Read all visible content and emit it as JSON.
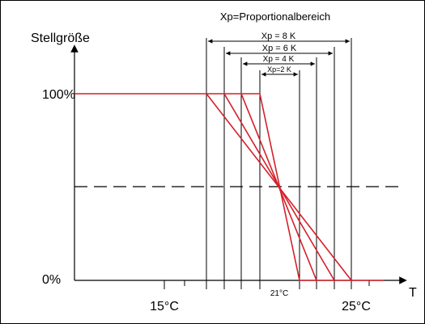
{
  "diagram": {
    "title": "Xp=Proportionalbereich",
    "y_axis_label": "Stellgröße",
    "x_axis_label": "T",
    "y_ticks": {
      "top": "100%",
      "bottom": "0%"
    },
    "x_ticks": {
      "left": "15°C",
      "center": "21°C",
      "right": "25°C"
    },
    "bands": [
      {
        "label": "Xp = 8 K",
        "xp_kelvin": 8
      },
      {
        "label": "Xp = 6 K",
        "xp_kelvin": 6
      },
      {
        "label": "Xp = 4 K",
        "xp_kelvin": 4
      },
      {
        "label": "Xp=2 K",
        "xp_kelvin": 2
      }
    ],
    "setpoint_celsius": 21,
    "colors": {
      "curve": "#d4202a",
      "axis": "#000000"
    }
  }
}
